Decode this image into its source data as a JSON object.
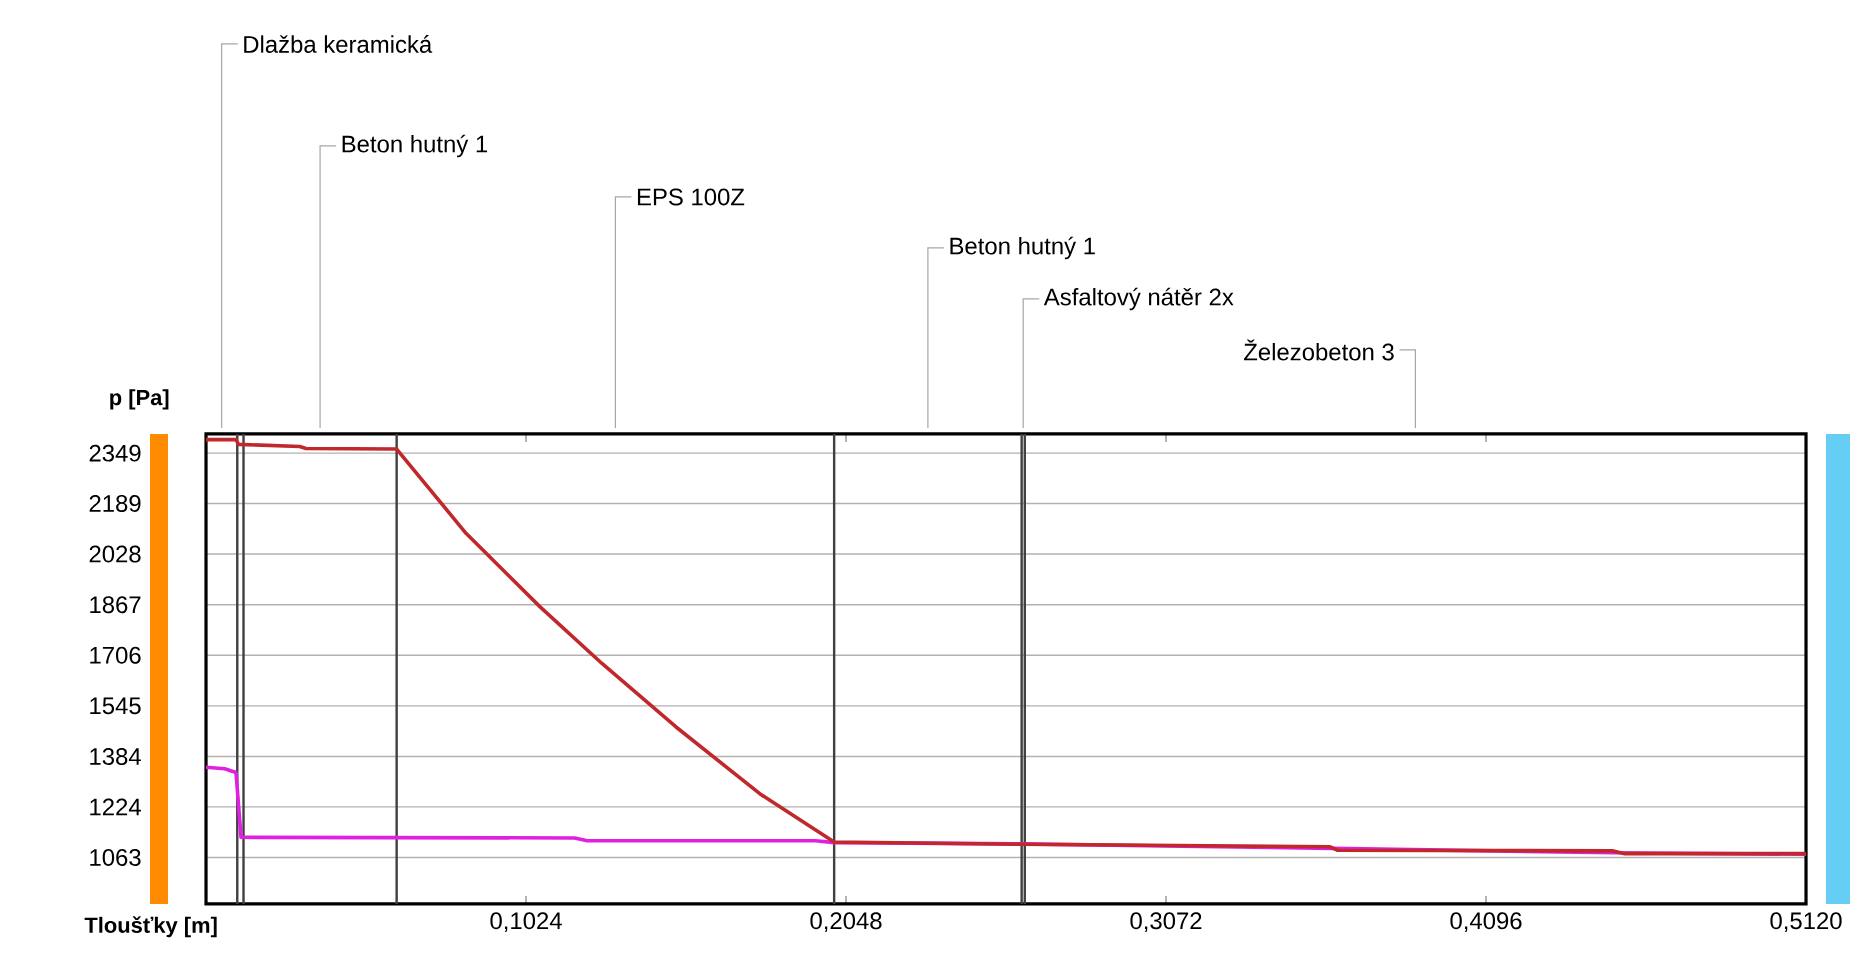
{
  "chart_data": {
    "type": "line",
    "xlabel": "Tloušťky [m]",
    "ylabel": "p [Pa]",
    "xlim": [
      0,
      0.512
    ],
    "ylim": [
      915,
      2410
    ],
    "xticks": [
      {
        "value": 0.1024,
        "label": "0,1024"
      },
      {
        "value": 0.2048,
        "label": "0,2048"
      },
      {
        "value": 0.3072,
        "label": "0,3072"
      },
      {
        "value": 0.4096,
        "label": "0,4096"
      },
      {
        "value": 0.512,
        "label": "0,5120"
      }
    ],
    "yticks": [
      1063,
      1224,
      1384,
      1545,
      1706,
      1867,
      2028,
      2189,
      2349
    ],
    "grid": "y",
    "ref_lines": [
      {
        "axis": "x",
        "value": 0.01
      },
      {
        "axis": "x",
        "value": 0.012
      },
      {
        "axis": "x",
        "value": 0.061
      },
      {
        "axis": "x",
        "value": 0.201
      },
      {
        "axis": "x",
        "value": 0.261
      },
      {
        "axis": "x",
        "value": 0.262
      }
    ],
    "annotations": [
      "Dlažba keramická",
      "Beton hutný 1",
      "EPS 100Z",
      "Beton hutný 1",
      "Asfaltový nátěr 2x",
      "Železobeton 3"
    ],
    "series": [
      {
        "color": "#e020e0",
        "x": [
          0,
          0.006,
          0.0096,
          0.0112,
          0.118,
          0.122,
          0.195,
          0.201,
          0.261,
          0.36,
          0.45,
          0.512
        ],
        "values": [
          1350,
          1345,
          1333,
          1127,
          1125,
          1116,
          1116,
          1110,
          1106,
          1092,
          1078,
          1073
        ]
      },
      {
        "color": "#c0282c",
        "x": [
          0,
          0.0096,
          0.0104,
          0.03,
          0.032,
          0.061,
          0.0832,
          0.1069,
          0.1267,
          0.1504,
          0.1773,
          0.201,
          0.261,
          0.3597,
          0.362,
          0.45,
          0.454,
          0.512
        ],
        "values": [
          2392,
          2392,
          2377,
          2370,
          2364,
          2362,
          2094,
          1860,
          1680,
          1478,
          1265,
          1112,
          1105,
          1097,
          1086,
          1084,
          1075,
          1075
        ]
      }
    ]
  }
}
